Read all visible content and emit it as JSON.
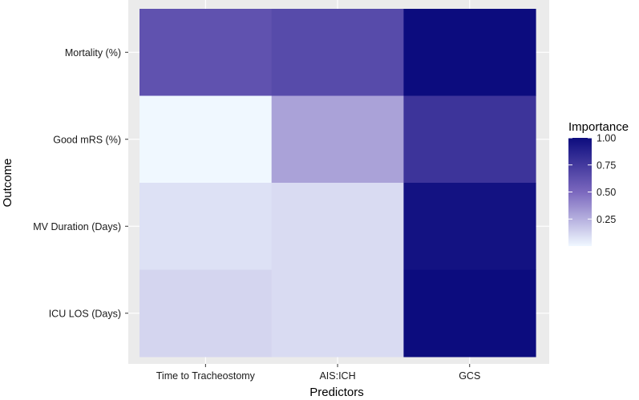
{
  "chart_data": {
    "type": "heatmap",
    "x_categories": [
      "Time to Tracheostomy",
      "AIS:ICH",
      "GCS"
    ],
    "y_categories": [
      "Mortality (%)",
      "Good mRS (%)",
      "MV Duration (Days)",
      "ICU LOS (Days)"
    ],
    "values": [
      [
        0.62,
        0.66,
        1.0
      ],
      [
        0.0,
        0.3,
        0.78
      ],
      [
        0.08,
        0.1,
        0.97
      ],
      [
        0.12,
        0.1,
        1.0
      ]
    ],
    "xlabel": "Predictors",
    "ylabel": "Outcome",
    "legend": {
      "title": "Importance",
      "ticks": [
        1.0,
        0.75,
        0.5,
        0.25
      ],
      "tick_labels": [
        "1.00",
        "0.75",
        "0.50",
        "0.25"
      ],
      "position": "right"
    },
    "color_scale": {
      "low": "#f0f8ff",
      "mid": "#7b68be",
      "high": "#0c0c7e"
    },
    "panel_background": "#ebebeb",
    "grid": true
  }
}
